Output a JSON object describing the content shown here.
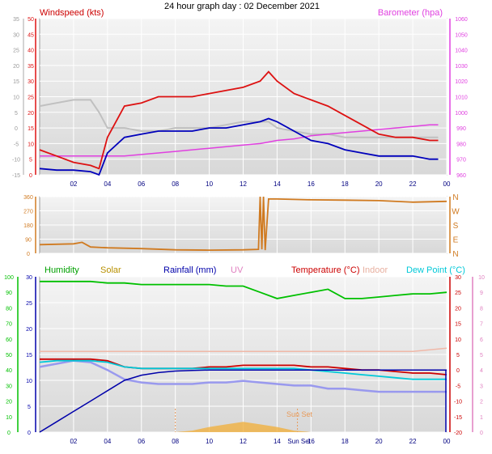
{
  "title": "24 hour graph day : 02 December 2021",
  "x_ticks": [
    "02",
    "04",
    "06",
    "08",
    "10",
    "12",
    "14",
    "16",
    "18",
    "20",
    "22",
    "00"
  ],
  "colors": {
    "windspeed": "#dd1111",
    "gust": "#c0c0c0",
    "wind_avg": "#0000bb",
    "barometer": "#e040e0",
    "direction": "#d07a20",
    "humidity": "#00c000",
    "solar": "#c8a000",
    "rainfall": "#0000aa",
    "uv": "#e080c0",
    "temperature": "#cc0000",
    "indoor": "#f0b8a8",
    "dewpoint": "#00c8d8",
    "sun_marker": "#e89a5a",
    "apparent": "#9999ee"
  },
  "chart_data": [
    {
      "type": "line",
      "title": "24 hour graph day : 02 December 2021",
      "ylabel_left": "Windspeed (kts)",
      "ylabel_right": "Barometer (hpa)",
      "y_left_ticks": [
        "0",
        "5",
        "10",
        "15",
        "20",
        "25",
        "30",
        "35",
        "40",
        "45",
        "50"
      ],
      "y_right_ticks": [
        "960",
        "970",
        "980",
        "990",
        "1000",
        "1010",
        "1020",
        "1030",
        "1040",
        "1050",
        "1060"
      ],
      "y_outer_ticks": [
        "-15",
        "-10",
        "-5",
        "0",
        "5",
        "10",
        "15",
        "20",
        "25",
        "30",
        "35"
      ],
      "ylim_left": [
        0,
        50
      ],
      "ylim_right": [
        960,
        1060
      ],
      "x_hours": [
        0,
        1,
        2,
        3,
        3.5,
        4,
        5,
        6,
        7,
        8,
        9,
        10,
        11,
        12,
        13,
        13.5,
        14,
        15,
        16,
        17,
        18,
        19,
        20,
        21,
        22,
        23,
        23.5
      ],
      "series": [
        {
          "name": "Windspeed (kts)",
          "values": [
            8,
            6,
            4,
            3,
            2,
            12,
            22,
            23,
            25,
            25,
            25,
            26,
            27,
            28,
            30,
            33,
            30,
            26,
            24,
            22,
            19,
            16,
            13,
            12,
            12,
            11,
            11
          ]
        },
        {
          "name": "Barometer (hpa)",
          "values": [
            972,
            972,
            972,
            972,
            972,
            972,
            972,
            973,
            974,
            975,
            976,
            977,
            978,
            979,
            980,
            981,
            982,
            983,
            985,
            986,
            987,
            988,
            989,
            990,
            991,
            992,
            992
          ]
        }
      ],
      "series_unlabeled": [
        {
          "values": [
            22,
            23,
            24,
            24,
            20,
            15,
            15,
            14,
            14,
            15,
            15,
            15,
            16,
            17,
            17,
            17,
            15,
            14,
            13,
            13,
            12,
            12,
            12,
            12,
            12,
            12,
            12
          ]
        },
        {
          "values": [
            2,
            1.5,
            1.5,
            1,
            0,
            7,
            12,
            13,
            14,
            14,
            14,
            15,
            15,
            16,
            17,
            18,
            17,
            14,
            11,
            10,
            8,
            7,
            6,
            6,
            6,
            5,
            5
          ]
        }
      ]
    },
    {
      "type": "line",
      "ylabel_right_letters": [
        "N",
        "W",
        "S",
        "E",
        "N"
      ],
      "y_left_ticks": [
        "0",
        "90",
        "180",
        "270",
        "360"
      ],
      "ylim": [
        0,
        360
      ],
      "x_hours": [
        0,
        2,
        2.5,
        3,
        4,
        6,
        8,
        10,
        12,
        12.9,
        13.0,
        13.1,
        13.2,
        13.3,
        13.5,
        14,
        16,
        18,
        20,
        22,
        24
      ],
      "series": [
        {
          "values": [
            55,
            60,
            70,
            40,
            35,
            30,
            22,
            20,
            22,
            25,
            360,
            25,
            360,
            20,
            345,
            345,
            340,
            338,
            335,
            325,
            330
          ]
        }
      ]
    },
    {
      "type": "line",
      "legend": [
        "Humidity",
        "Solar",
        "Rainfall (mm)",
        "UV",
        "Temperature (°C)",
        "Indoor",
        "Dew Point (°C)"
      ],
      "sun_set_label": "Sun Set",
      "sun_set_axis_label": "Sun Set",
      "y_humidity_ticks": [
        "0",
        "10",
        "20",
        "30",
        "40",
        "50",
        "60",
        "70",
        "80",
        "90",
        "100"
      ],
      "y_rain_ticks": [
        "0",
        "5",
        "10",
        "15",
        "20",
        "25",
        "30"
      ],
      "y_uv_ticks": [
        "0",
        "1",
        "2",
        "3",
        "4",
        "5",
        "6",
        "7",
        "8",
        "9",
        "10"
      ],
      "y_temp_ticks": [
        "-20",
        "-15",
        "-10",
        "-5",
        "0",
        "5",
        "10",
        "15",
        "20",
        "25",
        "30"
      ],
      "ylim_rain": [
        0,
        30
      ],
      "ylim_temp": [
        -20,
        30
      ],
      "x_hours": [
        0,
        1,
        2,
        3,
        4,
        5,
        6,
        7,
        8,
        9,
        10,
        11,
        12,
        13,
        14,
        15,
        16,
        17,
        18,
        19,
        20,
        21,
        22,
        23,
        24
      ],
      "series": [
        {
          "name": "Humidity",
          "values": [
            97,
            97,
            97,
            97,
            96,
            96,
            95,
            95,
            95,
            95,
            95,
            94,
            94,
            90,
            86,
            88,
            90,
            92,
            86,
            86,
            87,
            88,
            89,
            89,
            90
          ]
        },
        {
          "name": "Rainfall (mm)",
          "values": [
            0,
            2,
            4,
            6,
            8,
            10,
            11,
            11.5,
            11.8,
            11.9,
            12,
            12,
            12,
            12,
            12,
            12,
            12,
            12,
            12,
            12,
            12,
            12,
            12,
            12,
            12
          ]
        },
        {
          "name": "Temperature (°C)",
          "values": [
            3.5,
            3.5,
            3.5,
            3.5,
            3,
            1,
            0.5,
            0.5,
            0.5,
            0.5,
            1,
            1,
            1.5,
            1.5,
            1.5,
            1.5,
            1,
            1,
            0.5,
            0,
            0,
            -0.5,
            -1,
            -1,
            -1.5
          ]
        },
        {
          "name": "Indoor",
          "values": [
            6,
            6,
            6,
            6,
            6,
            6,
            6,
            6,
            6,
            6,
            6,
            6,
            6,
            6,
            6,
            6,
            6,
            6,
            6,
            6,
            6,
            6,
            6,
            6.5,
            7
          ]
        },
        {
          "name": "Dew Point (°C)",
          "values": [
            2.5,
            3,
            3,
            3,
            2.5,
            1,
            0.5,
            0.5,
            0.5,
            0.5,
            0.5,
            0.5,
            0.5,
            0.5,
            0.5,
            0.5,
            0,
            -0.5,
            -1,
            -1.5,
            -2,
            -2.5,
            -3,
            -3,
            -3
          ]
        },
        {
          "name": "Solar",
          "values": [
            0,
            0,
            0,
            0,
            0,
            0,
            0,
            0,
            0,
            0.3,
            1,
            1.5,
            2,
            1.5,
            1,
            0.3,
            0,
            0,
            0,
            0,
            0,
            0,
            0,
            0,
            0
          ]
        }
      ],
      "series_unlabeled": [
        {
          "values": [
            1,
            2,
            3,
            2.5,
            0,
            -3,
            -4,
            -4.5,
            -4.5,
            -4.5,
            -4,
            -4,
            -3.5,
            -4,
            -4.5,
            -5,
            -5,
            -6,
            -6,
            -6.5,
            -7,
            -7,
            -7,
            -7,
            -7
          ]
        }
      ]
    }
  ]
}
